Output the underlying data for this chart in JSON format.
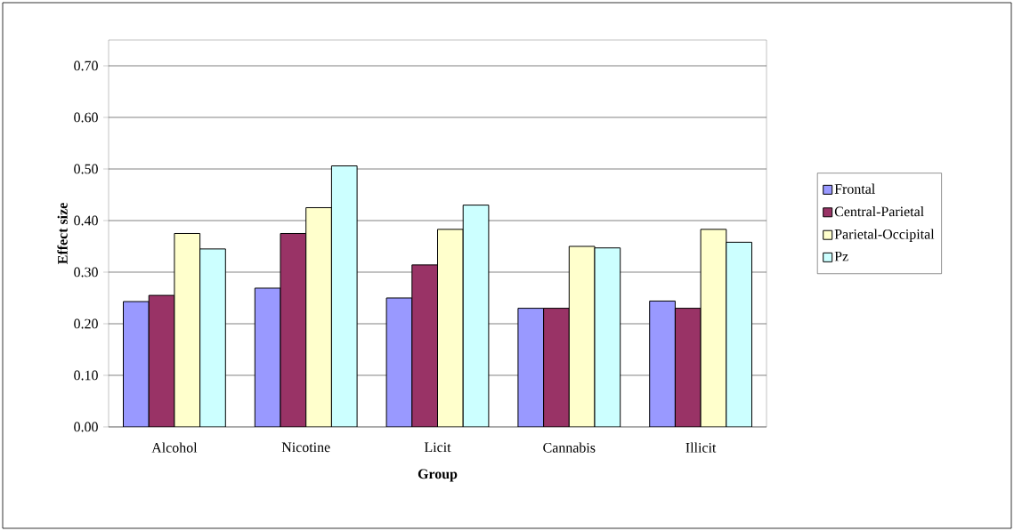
{
  "chart_data": {
    "type": "bar",
    "xlabel": "Group",
    "ylabel": "Effect size",
    "categories": [
      "Alcohol",
      "Nicotine",
      "Licit",
      "Cannabis",
      "Illicit"
    ],
    "series": [
      {
        "name": "Frontal",
        "color": "#9999ff",
        "values": [
          0.243,
          0.269,
          0.25,
          0.23,
          0.244
        ]
      },
      {
        "name": "Central-Parietal",
        "color": "#993366",
        "values": [
          0.255,
          0.375,
          0.314,
          0.23,
          0.23
        ]
      },
      {
        "name": "Parietal-Occipital",
        "color": "#ffffcc",
        "values": [
          0.375,
          0.425,
          0.383,
          0.35,
          0.383
        ]
      },
      {
        "name": "Pz",
        "color": "#ccffff",
        "values": [
          0.345,
          0.506,
          0.43,
          0.347,
          0.358
        ]
      }
    ],
    "ylim": [
      0,
      0.75
    ],
    "yticks": [
      {
        "value": 0,
        "label": "0.00"
      },
      {
        "value": 0.1,
        "label": "0.10"
      },
      {
        "value": 0.2,
        "label": "0.20"
      },
      {
        "value": 0.3,
        "label": "0.30"
      },
      {
        "value": 0.4,
        "label": "0.40"
      },
      {
        "value": 0.5,
        "label": "0.50"
      },
      {
        "value": 0.6,
        "label": "0.60"
      },
      {
        "value": 0.7,
        "label": "0.70"
      }
    ],
    "grid": "y",
    "legend": "right"
  }
}
